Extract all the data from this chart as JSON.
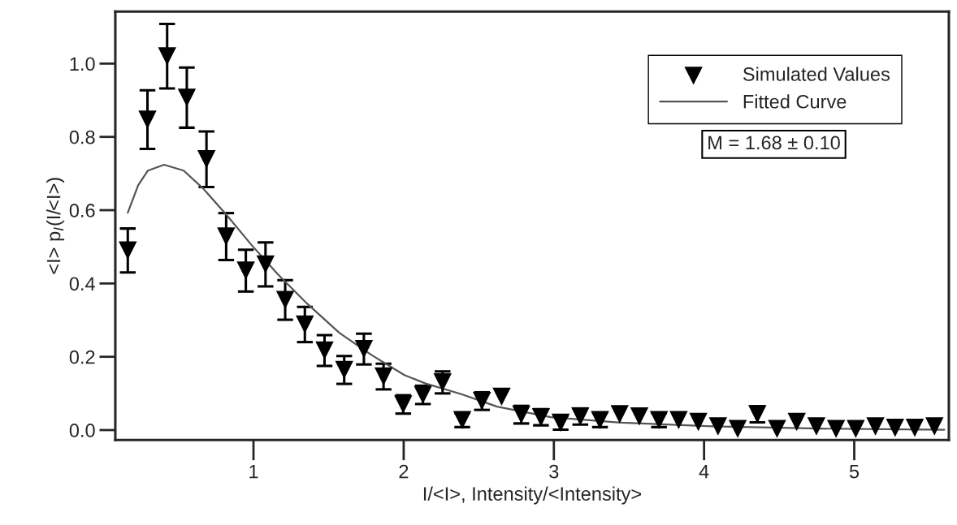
{
  "chart_data": {
    "type": "scatter",
    "xlabel": "I/<I>, Intensity/<Intensity>",
    "ylabel": "<I> p$_{I}$(I/<I>)",
    "xlim": [
      0.08,
      5.63
    ],
    "xticks": [
      1,
      2,
      3,
      4,
      5
    ],
    "ylim": [
      -0.027,
      1.142
    ],
    "yticks": [
      {
        "value": 0,
        "label": "0.0"
      },
      {
        "value": 0.2,
        "label": "0.2"
      },
      {
        "value": 0.4,
        "label": "0.4"
      },
      {
        "value": 0.6,
        "label": "0.6"
      },
      {
        "value": 0.8,
        "label": "0.8"
      },
      {
        "value": 1.0,
        "label": "1.0"
      }
    ],
    "grid": false,
    "legend": "top right",
    "annotations": [
      "M = 1.68 ± 0.10"
    ],
    "series": [
      {
        "name": "Simulated Values",
        "color": "#000000",
        "marker": "triangle",
        "x": [
          0.163,
          0.294,
          0.425,
          0.556,
          0.687,
          0.818,
          0.949,
          1.08,
          1.211,
          1.342,
          1.473,
          1.604,
          1.735,
          1.866,
          1.997,
          2.128,
          2.259,
          2.39,
          2.521,
          2.652,
          2.783,
          2.914,
          3.045,
          3.176,
          3.307,
          3.438,
          3.569,
          3.7,
          3.831,
          3.962,
          4.093,
          4.224,
          4.355,
          4.486,
          4.617,
          4.748,
          4.879,
          5.01,
          5.141,
          5.272,
          5.403,
          5.534
        ],
        "values": [
          0.49,
          0.847,
          1.02,
          0.907,
          0.739,
          0.528,
          0.435,
          0.452,
          0.355,
          0.288,
          0.217,
          0.164,
          0.221,
          0.146,
          0.07,
          0.096,
          0.13,
          0.027,
          0.079,
          0.091,
          0.042,
          0.035,
          0.02,
          0.037,
          0.027,
          0.043,
          0.037,
          0.027,
          0.027,
          0.022,
          0.01,
          0.003,
          0.043,
          0.003,
          0.022,
          0.01,
          0.003,
          0.003,
          0.01,
          0.006,
          0.006,
          0.01
        ],
        "errors": [
          0.06,
          0.08,
          0.088,
          0.082,
          0.076,
          0.064,
          0.057,
          0.06,
          0.054,
          0.048,
          0.042,
          0.038,
          0.042,
          0.035,
          0.025,
          0.025,
          0.03,
          0.019,
          0.024,
          null,
          0.024,
          0.022,
          0.019,
          0.022,
          0.019,
          null,
          null,
          0.019,
          null,
          null,
          null,
          null,
          0.022,
          null,
          null,
          null,
          null,
          null,
          null,
          null,
          null,
          null
        ]
      },
      {
        "name": "Fitted Curve",
        "type": "line",
        "color": "#555555",
        "marker": "none",
        "line_style": "solid",
        "x": [
          0.163,
          0.232,
          0.297,
          0.405,
          0.535,
          0.665,
          0.827,
          0.989,
          1.162,
          1.357,
          1.573,
          1.789,
          2.005,
          2.146,
          2.384,
          2.622,
          2.98,
          3.456,
          4.05,
          4.76,
          5.6
        ],
        "values": [
          0.593,
          0.668,
          0.708,
          0.724,
          0.708,
          0.659,
          0.584,
          0.504,
          0.425,
          0.345,
          0.265,
          0.204,
          0.15,
          0.127,
          0.098,
          0.064,
          0.035,
          0.02,
          0.01,
          0.004,
          0.001
        ]
      }
    ]
  }
}
